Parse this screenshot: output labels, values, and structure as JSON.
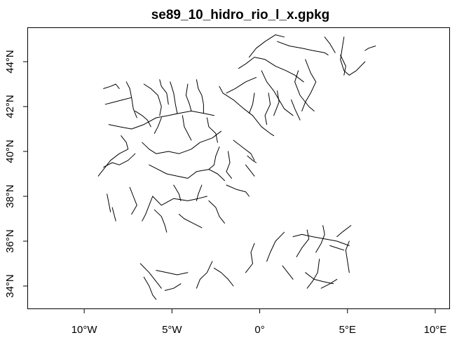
{
  "chart_data": {
    "type": "map",
    "title": "se89_10_hidro_rio_l_x.gpkg",
    "x_ticks": [
      {
        "value": -10,
        "label": "10°W"
      },
      {
        "value": -5,
        "label": "5°W"
      },
      {
        "value": 0,
        "label": "0°"
      },
      {
        "value": 5,
        "label": "5°E"
      },
      {
        "value": 10,
        "label": "10°E"
      }
    ],
    "y_ticks": [
      {
        "value": 34,
        "label": "34°N"
      },
      {
        "value": 36,
        "label": "36°N"
      },
      {
        "value": 38,
        "label": "38°N"
      },
      {
        "value": 40,
        "label": "40°N"
      },
      {
        "value": 42,
        "label": "42°N"
      },
      {
        "value": 44,
        "label": "44°N"
      }
    ],
    "xlim": [
      -13.2,
      10.8
    ],
    "ylim": [
      33.0,
      45.5
    ],
    "rivers": [
      [
        [
          -8.9,
          42.8
        ],
        [
          -8.5,
          42.9
        ],
        [
          -8.2,
          43.0
        ],
        [
          -8.0,
          42.8
        ]
      ],
      [
        [
          -8.8,
          42.1
        ],
        [
          -8.3,
          42.2
        ],
        [
          -7.8,
          42.3
        ],
        [
          -7.3,
          42.4
        ]
      ],
      [
        [
          -7.6,
          43.1
        ],
        [
          -7.4,
          42.8
        ],
        [
          -7.3,
          42.4
        ],
        [
          -7.2,
          41.9
        ],
        [
          -7.0,
          41.5
        ]
      ],
      [
        [
          -8.6,
          41.2
        ],
        [
          -8.0,
          41.1
        ],
        [
          -7.3,
          41.0
        ],
        [
          -6.6,
          41.2
        ],
        [
          -5.9,
          41.5
        ],
        [
          -5.2,
          41.6
        ],
        [
          -4.6,
          41.7
        ],
        [
          -3.9,
          41.8
        ],
        [
          -3.2,
          41.7
        ],
        [
          -2.6,
          41.6
        ]
      ],
      [
        [
          -6.6,
          43.0
        ],
        [
          -6.2,
          42.8
        ],
        [
          -5.8,
          42.5
        ],
        [
          -5.6,
          42.0
        ],
        [
          -5.7,
          41.6
        ]
      ],
      [
        [
          -5.1,
          43.1
        ],
        [
          -4.9,
          42.6
        ],
        [
          -4.8,
          42.1
        ],
        [
          -4.7,
          41.7
        ]
      ],
      [
        [
          -4.1,
          43.0
        ],
        [
          -4.2,
          42.5
        ],
        [
          -4.0,
          42.1
        ],
        [
          -3.9,
          41.8
        ]
      ],
      [
        [
          -5.7,
          43.2
        ],
        [
          -5.6,
          42.9
        ],
        [
          -5.3,
          42.6
        ],
        [
          -5.2,
          42.1
        ]
      ],
      [
        [
          -3.6,
          43.2
        ],
        [
          -3.5,
          42.8
        ],
        [
          -3.3,
          42.5
        ],
        [
          -3.2,
          42.1
        ],
        [
          -3.2,
          41.7
        ]
      ],
      [
        [
          -2.3,
          42.9
        ],
        [
          -2.1,
          42.6
        ],
        [
          -1.5,
          42.3
        ],
        [
          -0.9,
          41.9
        ],
        [
          -0.4,
          41.6
        ],
        [
          0.1,
          41.1
        ],
        [
          0.6,
          40.8
        ],
        [
          0.8,
          40.7
        ]
      ],
      [
        [
          -1.9,
          42.6
        ],
        [
          -1.4,
          42.8
        ],
        [
          -0.8,
          43.1
        ],
        [
          -0.2,
          43.3
        ]
      ],
      [
        [
          -0.3,
          42.6
        ],
        [
          -0.4,
          42.1
        ],
        [
          -0.6,
          41.7
        ]
      ],
      [
        [
          0.5,
          42.6
        ],
        [
          0.6,
          42.1
        ],
        [
          0.3,
          41.6
        ],
        [
          0.4,
          41.2
        ]
      ],
      [
        [
          1.0,
          42.7
        ],
        [
          1.1,
          42.2
        ],
        [
          0.8,
          41.6
        ]
      ],
      [
        [
          1.8,
          42.3
        ],
        [
          2.0,
          41.9
        ],
        [
          2.3,
          41.4
        ]
      ],
      [
        [
          -7.9,
          40.7
        ],
        [
          -7.6,
          40.4
        ],
        [
          -7.5,
          40.1
        ],
        [
          -8.0,
          39.9
        ],
        [
          -8.5,
          39.6
        ],
        [
          -8.9,
          39.2
        ],
        [
          -9.2,
          38.9
        ]
      ],
      [
        [
          -6.7,
          40.4
        ],
        [
          -6.3,
          40.1
        ],
        [
          -5.9,
          39.9
        ],
        [
          -5.2,
          40.0
        ],
        [
          -4.6,
          39.9
        ],
        [
          -3.9,
          40.1
        ],
        [
          -3.4,
          40.4
        ],
        [
          -2.7,
          40.6
        ],
        [
          -2.2,
          40.9
        ]
      ],
      [
        [
          -7.1,
          39.9
        ],
        [
          -7.5,
          39.6
        ],
        [
          -8.0,
          39.4
        ],
        [
          -8.4,
          39.5
        ],
        [
          -8.9,
          39.3
        ]
      ],
      [
        [
          -6.3,
          39.4
        ],
        [
          -5.8,
          39.2
        ],
        [
          -5.3,
          39.0
        ],
        [
          -4.7,
          38.9
        ],
        [
          -4.1,
          38.8
        ],
        [
          -3.6,
          39.1
        ],
        [
          -2.9,
          39.2
        ],
        [
          -2.4,
          39.0
        ],
        [
          -2.0,
          38.7
        ]
      ],
      [
        [
          -7.4,
          38.4
        ],
        [
          -7.2,
          38.0
        ],
        [
          -7.0,
          37.6
        ],
        [
          -7.3,
          37.2
        ]
      ],
      [
        [
          -6.1,
          38.0
        ],
        [
          -5.6,
          37.6
        ],
        [
          -4.9,
          37.9
        ],
        [
          -4.1,
          37.8
        ],
        [
          -3.5,
          37.9
        ],
        [
          -3.0,
          38.0
        ]
      ],
      [
        [
          -6.0,
          37.4
        ],
        [
          -5.6,
          37.1
        ],
        [
          -5.4,
          36.7
        ],
        [
          -5.3,
          36.4
        ]
      ],
      [
        [
          -4.6,
          37.2
        ],
        [
          -4.3,
          37.0
        ],
        [
          -3.8,
          36.8
        ],
        [
          -3.3,
          36.6
        ]
      ],
      [
        [
          -2.9,
          37.8
        ],
        [
          -2.5,
          37.5
        ],
        [
          -2.3,
          37.1
        ],
        [
          -2.0,
          36.8
        ]
      ],
      [
        [
          -1.9,
          38.5
        ],
        [
          -1.3,
          38.3
        ],
        [
          -0.8,
          38.2
        ],
        [
          -0.6,
          38.0
        ]
      ],
      [
        [
          -0.7,
          39.8
        ],
        [
          -0.4,
          39.6
        ],
        [
          -0.2,
          39.5
        ]
      ],
      [
        [
          -1.5,
          40.5
        ],
        [
          -1.0,
          40.2
        ],
        [
          -0.5,
          39.9
        ],
        [
          -0.3,
          39.6
        ]
      ],
      [
        [
          -0.8,
          39.4
        ],
        [
          -0.5,
          39.1
        ],
        [
          -0.3,
          38.9
        ]
      ],
      [
        [
          -8.7,
          38.1
        ],
        [
          -8.6,
          37.7
        ],
        [
          -8.5,
          37.3
        ]
      ],
      [
        [
          -8.2,
          36.9
        ],
        [
          -8.3,
          37.2
        ],
        [
          -8.4,
          37.5
        ]
      ],
      [
        [
          -0.6,
          44.2
        ],
        [
          -0.2,
          44.6
        ],
        [
          0.3,
          44.9
        ],
        [
          0.9,
          45.2
        ],
        [
          1.4,
          45.1
        ]
      ],
      [
        [
          1.0,
          44.9
        ],
        [
          1.7,
          44.7
        ],
        [
          2.4,
          44.6
        ],
        [
          3.0,
          44.5
        ],
        [
          3.7,
          44.4
        ],
        [
          3.9,
          44.3
        ]
      ],
      [
        [
          -1.2,
          43.7
        ],
        [
          -0.8,
          43.9
        ],
        [
          -0.3,
          44.2
        ],
        [
          0.3,
          44.1
        ],
        [
          0.9,
          43.8
        ],
        [
          1.5,
          43.6
        ],
        [
          2.0,
          43.4
        ],
        [
          2.5,
          43.1
        ]
      ],
      [
        [
          0.1,
          43.6
        ],
        [
          0.4,
          43.1
        ],
        [
          0.8,
          42.7
        ],
        [
          1.1,
          42.3
        ],
        [
          1.4,
          41.9
        ],
        [
          1.9,
          41.6
        ]
      ],
      [
        [
          2.2,
          43.6
        ],
        [
          2.0,
          43.1
        ],
        [
          2.3,
          42.5
        ],
        [
          2.8,
          42.0
        ],
        [
          3.1,
          41.8
        ]
      ],
      [
        [
          2.6,
          44.1
        ],
        [
          2.9,
          43.5
        ],
        [
          3.2,
          43.1
        ],
        [
          2.9,
          42.6
        ],
        [
          2.6,
          42.2
        ],
        [
          2.4,
          41.8
        ]
      ],
      [
        [
          4.6,
          44.3
        ],
        [
          4.9,
          43.8
        ],
        [
          4.8,
          43.4
        ]
      ],
      [
        [
          4.8,
          45.1
        ],
        [
          4.7,
          44.6
        ],
        [
          4.6,
          44.1
        ],
        [
          4.8,
          43.6
        ],
        [
          5.1,
          43.4
        ],
        [
          5.5,
          43.6
        ],
        [
          6.0,
          44.0
        ]
      ],
      [
        [
          6.0,
          44.5
        ],
        [
          6.2,
          44.6
        ],
        [
          6.6,
          44.7
        ]
      ],
      [
        [
          3.7,
          45.1
        ],
        [
          4.0,
          44.8
        ],
        [
          4.3,
          44.4
        ]
      ],
      [
        [
          5.1,
          35.8
        ],
        [
          4.4,
          36.0
        ],
        [
          3.7,
          36.1
        ],
        [
          3.0,
          36.2
        ],
        [
          2.4,
          36.3
        ],
        [
          1.9,
          36.2
        ]
      ],
      [
        [
          3.6,
          36.7
        ],
        [
          3.7,
          36.3
        ],
        [
          3.5,
          35.9
        ],
        [
          3.2,
          35.5
        ]
      ],
      [
        [
          2.7,
          36.5
        ],
        [
          2.8,
          36.1
        ],
        [
          2.4,
          35.7
        ],
        [
          2.1,
          35.3
        ]
      ],
      [
        [
          1.4,
          36.4
        ],
        [
          0.9,
          36.0
        ],
        [
          0.6,
          35.5
        ],
        [
          0.4,
          35.1
        ]
      ],
      [
        [
          -0.3,
          35.9
        ],
        [
          -0.5,
          35.5
        ],
        [
          -0.4,
          35.0
        ],
        [
          -0.8,
          34.6
        ]
      ],
      [
        [
          3.4,
          35.2
        ],
        [
          3.3,
          34.6
        ],
        [
          3.0,
          34.2
        ],
        [
          2.7,
          33.9
        ]
      ],
      [
        [
          2.6,
          34.6
        ],
        [
          3.1,
          34.3
        ],
        [
          3.6,
          34.2
        ],
        [
          4.2,
          34.1
        ]
      ],
      [
        [
          4.4,
          34.3
        ],
        [
          4.0,
          34.1
        ],
        [
          3.5,
          33.9
        ]
      ],
      [
        [
          5.2,
          36.7
        ],
        [
          4.7,
          36.4
        ],
        [
          4.4,
          36.2
        ]
      ],
      [
        [
          5.1,
          36.0
        ],
        [
          4.9,
          35.6
        ],
        [
          5.0,
          35.1
        ],
        [
          5.1,
          34.6
        ]
      ],
      [
        [
          4.0,
          35.8
        ],
        [
          4.4,
          35.7
        ],
        [
          4.8,
          35.6
        ]
      ],
      [
        [
          -2.7,
          35.1
        ],
        [
          -3.0,
          34.6
        ],
        [
          -3.4,
          34.3
        ],
        [
          -3.6,
          33.9
        ]
      ],
      [
        [
          -2.6,
          34.8
        ],
        [
          -2.2,
          34.6
        ],
        [
          -1.8,
          34.3
        ],
        [
          -1.5,
          34.0
        ]
      ],
      [
        [
          -6.8,
          35.0
        ],
        [
          -6.3,
          34.6
        ],
        [
          -5.9,
          34.2
        ],
        [
          -5.6,
          33.9
        ]
      ],
      [
        [
          -6.6,
          34.4
        ],
        [
          -6.3,
          34.0
        ],
        [
          -6.1,
          33.6
        ],
        [
          -5.9,
          33.4
        ]
      ],
      [
        [
          -5.9,
          34.7
        ],
        [
          -5.3,
          34.6
        ],
        [
          -4.7,
          34.5
        ],
        [
          -4.1,
          34.6
        ]
      ],
      [
        [
          -4.5,
          34.1
        ],
        [
          -4.9,
          33.9
        ],
        [
          -5.4,
          33.8
        ]
      ],
      [
        [
          1.3,
          34.9
        ],
        [
          1.6,
          34.6
        ],
        [
          1.9,
          34.3
        ]
      ],
      [
        [
          -7.1,
          41.8
        ],
        [
          -6.7,
          41.6
        ],
        [
          -6.4,
          41.4
        ],
        [
          -6.2,
          41.1
        ]
      ],
      [
        [
          -5.6,
          41.5
        ],
        [
          -5.8,
          41.1
        ],
        [
          -6.0,
          40.8
        ]
      ],
      [
        [
          -4.4,
          41.6
        ],
        [
          -4.3,
          41.1
        ],
        [
          -4.1,
          40.8
        ],
        [
          -3.9,
          40.5
        ]
      ],
      [
        [
          -3.0,
          41.5
        ],
        [
          -2.9,
          41.1
        ],
        [
          -2.5,
          40.8
        ],
        [
          -2.4,
          40.4
        ]
      ],
      [
        [
          -2.3,
          40.2
        ],
        [
          -2.5,
          39.8
        ],
        [
          -2.6,
          39.4
        ],
        [
          -2.9,
          39.2
        ]
      ],
      [
        [
          -1.8,
          40.0
        ],
        [
          -1.7,
          39.5
        ],
        [
          -1.9,
          39.1
        ],
        [
          -1.6,
          38.8
        ]
      ],
      [
        [
          -4.9,
          38.5
        ],
        [
          -4.6,
          38.1
        ],
        [
          -4.5,
          37.8
        ]
      ],
      [
        [
          -3.3,
          38.5
        ],
        [
          -3.5,
          38.1
        ],
        [
          -3.6,
          37.8
        ]
      ],
      [
        [
          -6.7,
          36.9
        ],
        [
          -6.5,
          37.2
        ],
        [
          -6.3,
          37.6
        ],
        [
          -6.1,
          38.0
        ]
      ]
    ]
  }
}
